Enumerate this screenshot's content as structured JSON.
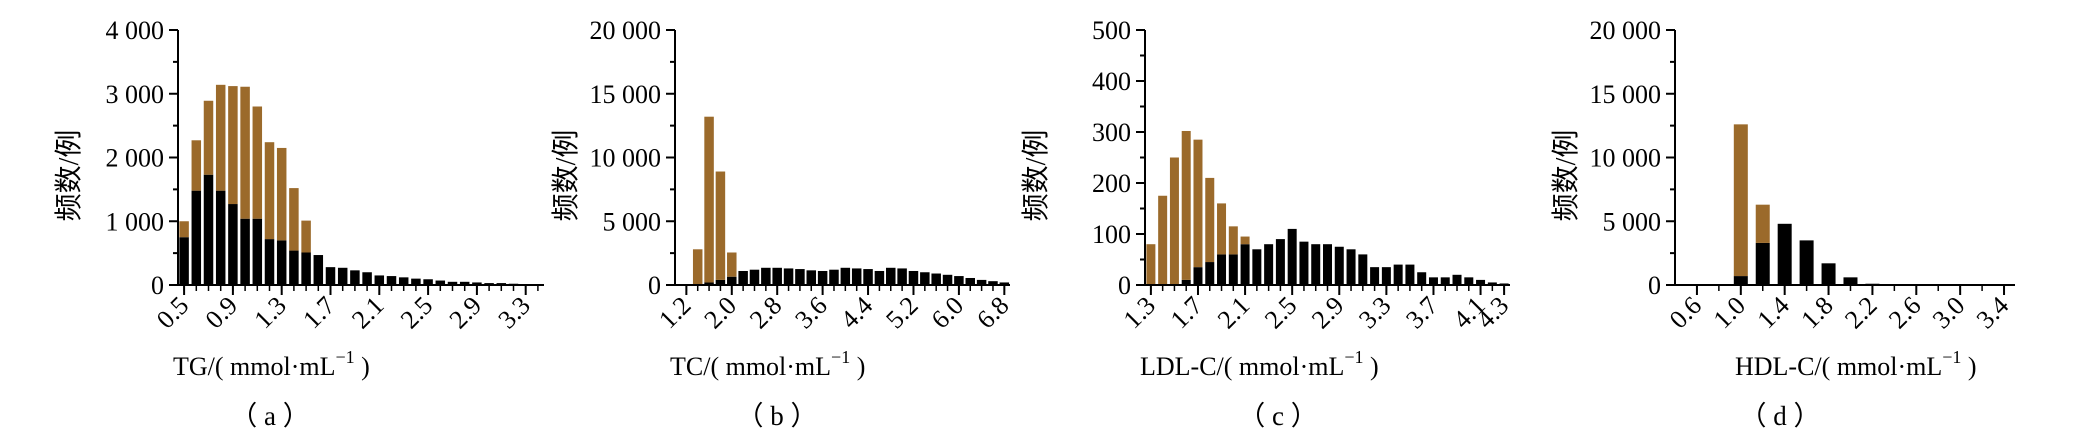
{
  "colors": {
    "brown": "#9B6A2B",
    "black": "#000000"
  },
  "chart_data": [
    {
      "type": "bar",
      "stacked": true,
      "panel_label": "（ a ）",
      "title": "",
      "ylabel": "频数/例",
      "xlabel_base": "TG/( mmol·mL",
      "xlabel_sup": "−1",
      "xlabel_tail": " )",
      "ylim": [
        0,
        4000
      ],
      "ytick_values": [
        0,
        1000,
        2000,
        3000,
        4000
      ],
      "ytick_labels": [
        "0",
        "1 000",
        "2 000",
        "3 000",
        "4 000"
      ],
      "x_first": 0.5,
      "x_step": 0.1,
      "xlim": [
        0.45,
        3.45
      ],
      "xtick_values": [
        0.5,
        0.9,
        1.3,
        1.7,
        2.1,
        2.5,
        2.9,
        3.3
      ],
      "xtick_labels": [
        "0.5",
        "0.9",
        "1.3",
        "1.7",
        "2.1",
        "2.5",
        "2.9",
        "3.3"
      ],
      "series": [
        {
          "name": "black",
          "color": "black",
          "values": [
            750,
            1480,
            1730,
            1480,
            1270,
            1040,
            1040,
            720,
            700,
            540,
            510,
            470,
            280,
            270,
            230,
            200,
            150,
            140,
            120,
            100,
            90,
            70,
            50,
            50,
            40,
            30,
            30,
            20,
            10,
            10
          ]
        },
        {
          "name": "brown",
          "color": "brown",
          "values": [
            250,
            790,
            1160,
            1660,
            1850,
            2070,
            1760,
            1520,
            1450,
            980,
            500,
            0,
            0,
            0,
            0,
            0,
            0,
            0,
            0,
            0,
            0,
            0,
            0,
            0,
            0,
            0,
            0,
            0,
            0,
            0
          ]
        }
      ]
    },
    {
      "type": "bar",
      "stacked": true,
      "panel_label": "（ b ）",
      "title": "",
      "ylabel": "频数/例",
      "xlabel_base": "TC/( mmol·mL",
      "xlabel_sup": "−1",
      "xlabel_tail": " )",
      "ylim": [
        0,
        20000
      ],
      "ytick_values": [
        0,
        5000,
        10000,
        15000,
        20000
      ],
      "ytick_labels": [
        "0",
        "5 000",
        "10 000",
        "15 000",
        "20 000"
      ],
      "x_first": 1.4,
      "x_step": 0.2,
      "xlim": [
        1.0,
        6.9
      ],
      "xtick_values": [
        1.2,
        2.0,
        2.8,
        3.6,
        4.4,
        5.2,
        6.0,
        6.8
      ],
      "xtick_labels": [
        "1.2",
        "2.0",
        "2.8",
        "3.6",
        "4.4",
        "5.2",
        "6.0",
        "6.8"
      ],
      "series": [
        {
          "name": "black",
          "color": "black",
          "values": [
            0,
            200,
            400,
            650,
            1100,
            1200,
            1350,
            1350,
            1300,
            1250,
            1150,
            1100,
            1200,
            1350,
            1300,
            1250,
            1100,
            1350,
            1300,
            1100,
            1000,
            900,
            800,
            700,
            550,
            400,
            300,
            200
          ]
        },
        {
          "name": "brown",
          "color": "brown",
          "values": [
            2800,
            13000,
            8500,
            1900,
            0,
            0,
            0,
            0,
            0,
            0,
            0,
            0,
            0,
            0,
            0,
            0,
            0,
            0,
            0,
            0,
            0,
            0,
            0,
            0,
            0,
            0,
            0,
            0
          ]
        }
      ]
    },
    {
      "type": "bar",
      "stacked": true,
      "panel_label": "（ c ）",
      "title": "",
      "ylabel": "频数/例",
      "xlabel_base": "LDL-C/( mmol·mL",
      "xlabel_sup": "−1",
      "xlabel_tail": " )",
      "ylim": [
        0,
        500
      ],
      "ytick_values": [
        0,
        100,
        200,
        300,
        400,
        500
      ],
      "ytick_labels": [
        "0",
        "100",
        "200",
        "300",
        "400",
        "500"
      ],
      "x_first": 1.3,
      "x_step": 0.1,
      "xlim": [
        1.25,
        4.35
      ],
      "xtick_values": [
        1.3,
        1.7,
        2.1,
        2.5,
        2.9,
        3.3,
        3.7,
        4.1,
        4.3
      ],
      "xtick_labels": [
        "1.3",
        "1.7",
        "2.1",
        "2.5",
        "2.9",
        "3.3",
        "3.7",
        "4.1",
        "4.3"
      ],
      "series": [
        {
          "name": "black",
          "color": "black",
          "values": [
            0,
            0,
            0,
            10,
            35,
            45,
            60,
            60,
            80,
            70,
            80,
            90,
            110,
            85,
            80,
            80,
            75,
            70,
            60,
            35,
            35,
            40,
            40,
            25,
            15,
            15,
            20,
            15,
            10,
            5,
            3
          ]
        },
        {
          "name": "brown",
          "color": "brown",
          "values": [
            80,
            175,
            250,
            292,
            250,
            165,
            100,
            55,
            15,
            0,
            0,
            0,
            0,
            0,
            0,
            0,
            0,
            0,
            0,
            0,
            0,
            0,
            0,
            0,
            0,
            0,
            0,
            0,
            0,
            0,
            0
          ]
        }
      ]
    },
    {
      "type": "bar",
      "stacked": true,
      "panel_label": "（ d ）",
      "title": "",
      "ylabel": "频数/例",
      "xlabel_base": "HDL-C/( mmol·mL",
      "xlabel_sup": "−1",
      "xlabel_tail": " )",
      "ylim": [
        0,
        20000
      ],
      "ytick_values": [
        0,
        5000,
        10000,
        15000,
        20000
      ],
      "ytick_labels": [
        "0",
        "5 000",
        "10 000",
        "15 000",
        "20 000"
      ],
      "x_first": 1.0,
      "x_step": 0.2,
      "xlim": [
        0.4,
        3.5
      ],
      "xtick_values": [
        0.6,
        1.0,
        1.4,
        1.8,
        2.2,
        2.6,
        3.0,
        3.4
      ],
      "xtick_labels": [
        "0.6",
        "1.0",
        "1.4",
        "1.8",
        "2.2",
        "2.6",
        "3.0",
        "3.4"
      ],
      "series": [
        {
          "name": "black",
          "color": "black",
          "values": [
            700,
            3300,
            4800,
            3500,
            1700,
            600,
            100
          ]
        },
        {
          "name": "brown",
          "color": "brown",
          "values": [
            11900,
            3000,
            0,
            0,
            0,
            0,
            0
          ]
        }
      ]
    }
  ]
}
